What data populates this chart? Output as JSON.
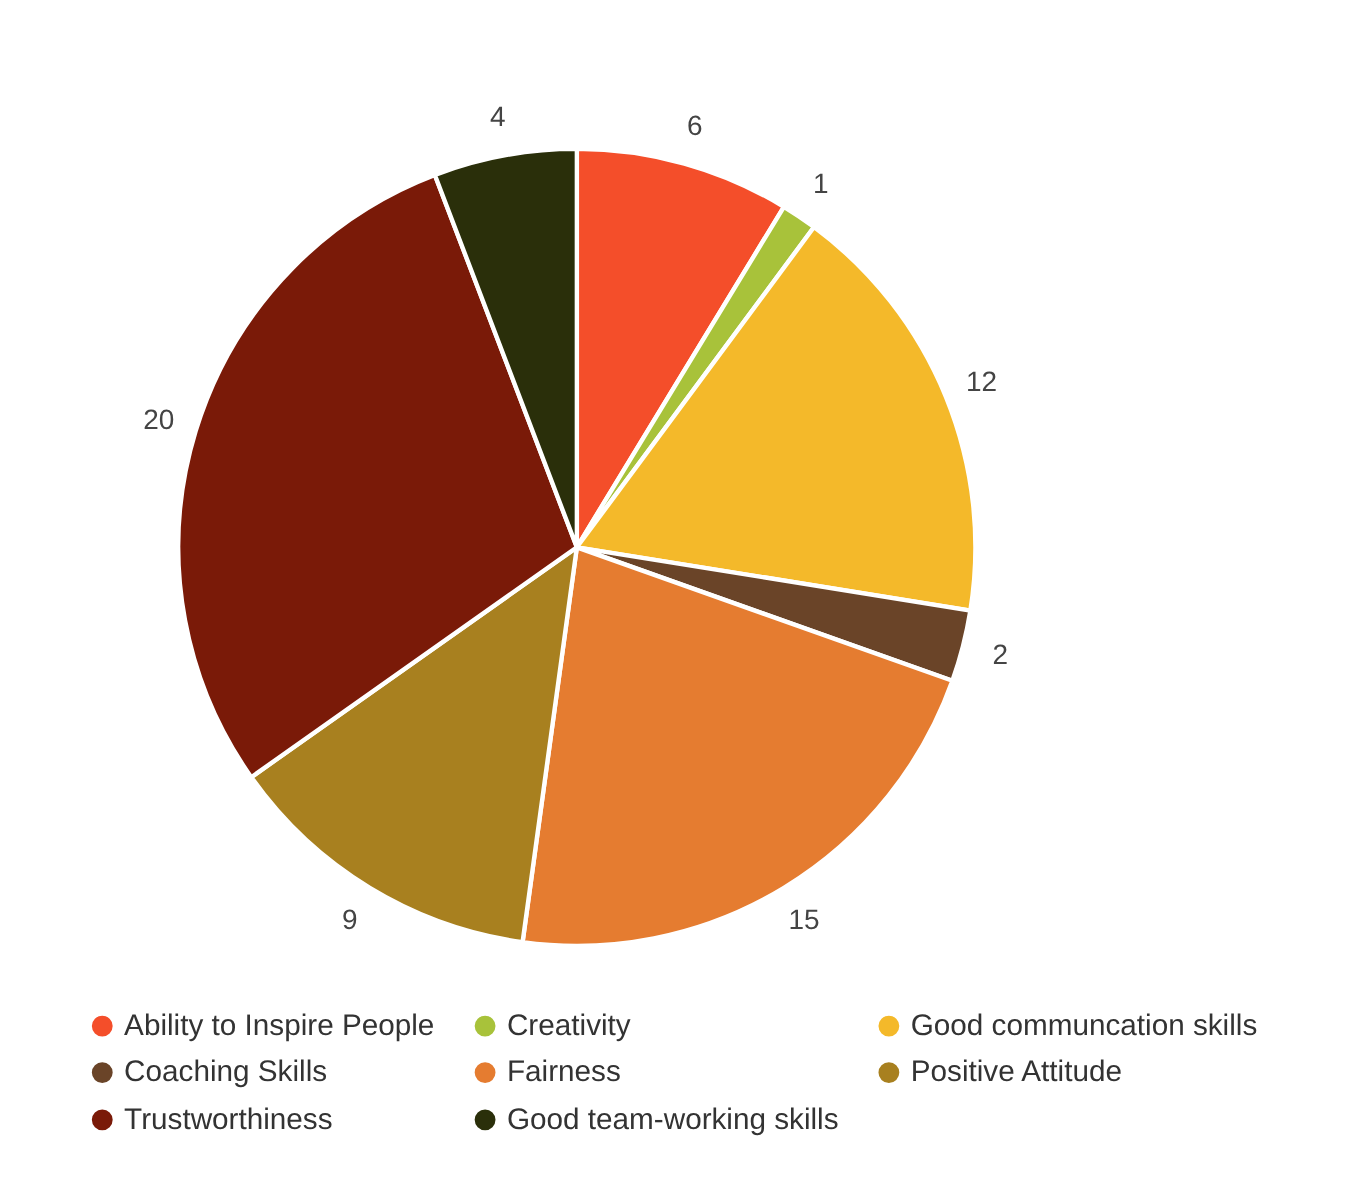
{
  "chart_data": {
    "type": "pie",
    "categories": [
      "Ability to Inspire People",
      "Creativity",
      "Good communcation skills",
      "Coaching Skills",
      "Fairness",
      "Positive Attitude",
      "Trustworthiness",
      "Good team-working skills"
    ],
    "values": [
      6,
      1,
      12,
      2,
      15,
      9,
      20,
      4
    ],
    "colors": [
      "#f44e2a",
      "#a8c23a",
      "#f4b92a",
      "#6a4428",
      "#e57c30",
      "#a8801f",
      "#7a1a08",
      "#2a2f0a"
    ],
    "data_labels": true,
    "legend": "bottom"
  }
}
